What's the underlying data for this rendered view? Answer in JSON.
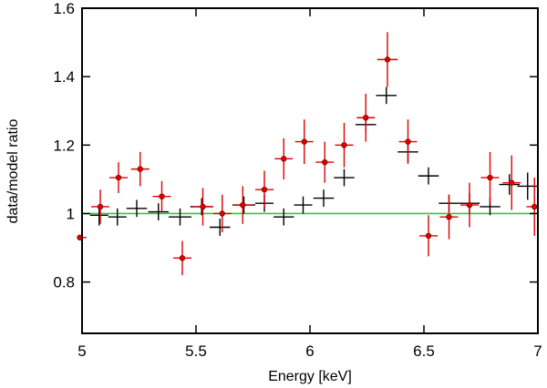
{
  "chart_data": {
    "type": "scatter",
    "title": "",
    "xlabel": "Energy [keV]",
    "ylabel": "data/model ratio",
    "xlim": [
      5,
      7
    ],
    "ylim": [
      0.65,
      1.6
    ],
    "x_ticks": [
      5,
      5.5,
      6,
      6.5,
      7
    ],
    "x_tick_labels": [
      "5",
      "5.5",
      "6",
      "6.5",
      "7"
    ],
    "y_ticks": [
      0.8,
      1,
      1.2,
      1.4,
      1.6
    ],
    "y_tick_labels": [
      "0.8",
      "1",
      "1.2",
      "1.4",
      "1.6"
    ],
    "reference_line": {
      "y": 1.0,
      "color": "#33cc33"
    },
    "series": [
      {
        "name": "black",
        "color": "#000000",
        "marker": "none",
        "points": [
          {
            "x": 5.075,
            "y": 0.995,
            "xerr": 0.04,
            "yerr": 0.03
          },
          {
            "x": 5.155,
            "y": 0.99,
            "xerr": 0.04,
            "yerr": 0.025
          },
          {
            "x": 5.24,
            "y": 1.015,
            "xerr": 0.045,
            "yerr": 0.025
          },
          {
            "x": 5.335,
            "y": 1.005,
            "xerr": 0.045,
            "yerr": 0.025
          },
          {
            "x": 5.43,
            "y": 0.99,
            "xerr": 0.05,
            "yerr": 0.025
          },
          {
            "x": 5.525,
            "y": 1.02,
            "xerr": 0.05,
            "yerr": 0.025
          },
          {
            "x": 5.605,
            "y": 0.96,
            "xerr": 0.045,
            "yerr": 0.025
          },
          {
            "x": 5.71,
            "y": 1.025,
            "xerr": 0.05,
            "yerr": 0.025
          },
          {
            "x": 5.8,
            "y": 1.03,
            "xerr": 0.04,
            "yerr": 0.025
          },
          {
            "x": 5.885,
            "y": 0.99,
            "xerr": 0.045,
            "yerr": 0.025
          },
          {
            "x": 5.97,
            "y": 1.025,
            "xerr": 0.04,
            "yerr": 0.025
          },
          {
            "x": 6.06,
            "y": 1.045,
            "xerr": 0.045,
            "yerr": 0.025
          },
          {
            "x": 6.15,
            "y": 1.105,
            "xerr": 0.045,
            "yerr": 0.025
          },
          {
            "x": 6.245,
            "y": 1.26,
            "xerr": 0.045,
            "yerr": 0.025
          },
          {
            "x": 6.335,
            "y": 1.345,
            "xerr": 0.045,
            "yerr": 0.025
          },
          {
            "x": 6.43,
            "y": 1.18,
            "xerr": 0.045,
            "yerr": 0.03
          },
          {
            "x": 6.52,
            "y": 1.11,
            "xerr": 0.045,
            "yerr": 0.025
          },
          {
            "x": 6.61,
            "y": 1.03,
            "xerr": 0.045,
            "yerr": 0.025
          },
          {
            "x": 6.7,
            "y": 1.03,
            "xerr": 0.045,
            "yerr": 0.03
          },
          {
            "x": 6.79,
            "y": 1.02,
            "xerr": 0.045,
            "yerr": 0.025
          },
          {
            "x": 6.875,
            "y": 1.085,
            "xerr": 0.045,
            "yerr": 0.03
          },
          {
            "x": 6.955,
            "y": 1.08,
            "xerr": 0.045,
            "yerr": 0.04
          }
        ]
      },
      {
        "name": "red",
        "color": "#e00000",
        "marker": "circle",
        "points": [
          {
            "x": 4.99,
            "y": 0.93,
            "xerr": 0.03,
            "yerr": 0.0
          },
          {
            "x": 5.08,
            "y": 1.02,
            "xerr": 0.04,
            "yerr": 0.05
          },
          {
            "x": 5.16,
            "y": 1.105,
            "xerr": 0.04,
            "yerr": 0.045
          },
          {
            "x": 5.255,
            "y": 1.13,
            "xerr": 0.04,
            "yerr": 0.05
          },
          {
            "x": 5.35,
            "y": 1.05,
            "xerr": 0.04,
            "yerr": 0.045
          },
          {
            "x": 5.44,
            "y": 0.87,
            "xerr": 0.04,
            "yerr": 0.05
          },
          {
            "x": 5.53,
            "y": 1.02,
            "xerr": 0.045,
            "yerr": 0.055
          },
          {
            "x": 5.615,
            "y": 1.0,
            "xerr": 0.04,
            "yerr": 0.055
          },
          {
            "x": 5.705,
            "y": 1.025,
            "xerr": 0.04,
            "yerr": 0.055
          },
          {
            "x": 5.8,
            "y": 1.07,
            "xerr": 0.04,
            "yerr": 0.055
          },
          {
            "x": 5.885,
            "y": 1.16,
            "xerr": 0.04,
            "yerr": 0.06
          },
          {
            "x": 5.975,
            "y": 1.21,
            "xerr": 0.04,
            "yerr": 0.065
          },
          {
            "x": 6.065,
            "y": 1.15,
            "xerr": 0.04,
            "yerr": 0.06
          },
          {
            "x": 6.15,
            "y": 1.2,
            "xerr": 0.04,
            "yerr": 0.065
          },
          {
            "x": 6.245,
            "y": 1.28,
            "xerr": 0.04,
            "yerr": 0.07
          },
          {
            "x": 6.34,
            "y": 1.45,
            "xerr": 0.045,
            "yerr": 0.08
          },
          {
            "x": 6.43,
            "y": 1.21,
            "xerr": 0.04,
            "yerr": 0.065
          },
          {
            "x": 6.52,
            "y": 0.935,
            "xerr": 0.04,
            "yerr": 0.06
          },
          {
            "x": 6.61,
            "y": 0.99,
            "xerr": 0.04,
            "yerr": 0.065
          },
          {
            "x": 6.7,
            "y": 1.025,
            "xerr": 0.04,
            "yerr": 0.065
          },
          {
            "x": 6.79,
            "y": 1.105,
            "xerr": 0.04,
            "yerr": 0.075
          },
          {
            "x": 6.885,
            "y": 1.09,
            "xerr": 0.04,
            "yerr": 0.08
          },
          {
            "x": 6.985,
            "y": 1.02,
            "xerr": 0.035,
            "yerr": 0.085
          }
        ]
      }
    ]
  }
}
